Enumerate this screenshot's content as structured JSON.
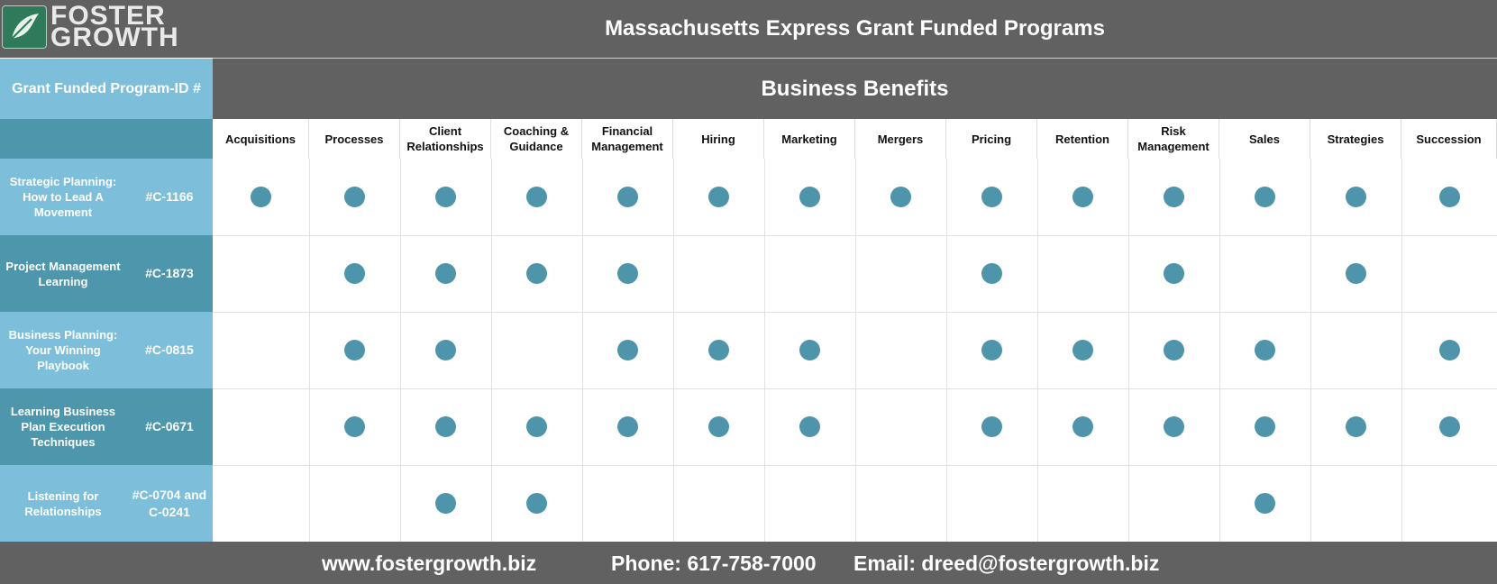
{
  "brand": {
    "logo_line1": "FOSTER",
    "logo_line2": "GROWTH",
    "logo_icon": "leaf-logo-icon"
  },
  "title": "Massachusetts Express Grant Funded Programs",
  "program_header": "Grant Funded Program-ID #",
  "benefits_header": "Business Benefits",
  "columns": [
    "Acquisitions",
    "Processes",
    "Client Relationships",
    "Coaching & Guidance",
    "Financial Management",
    "Hiring",
    "Marketing",
    "Mergers",
    "Pricing",
    "Retention",
    "Risk Management",
    "Sales",
    "Strategies",
    "Succession"
  ],
  "rows": [
    {
      "name": "Strategic Planning: How to Lead A Movement",
      "id": "#C-1166",
      "marks": [
        1,
        1,
        1,
        1,
        1,
        1,
        1,
        1,
        1,
        1,
        1,
        1,
        1,
        1
      ]
    },
    {
      "name": "Project Management Learning",
      "id": "#C-1873",
      "marks": [
        0,
        1,
        1,
        1,
        1,
        0,
        0,
        0,
        1,
        0,
        1,
        0,
        1,
        0
      ]
    },
    {
      "name": "Business Planning: Your Winning Playbook",
      "id": "#C-0815",
      "marks": [
        0,
        1,
        1,
        0,
        1,
        1,
        1,
        0,
        1,
        1,
        1,
        1,
        0,
        1
      ]
    },
    {
      "name": "Learning Business Plan Execution Techniques",
      "id": "#C-0671",
      "marks": [
        0,
        1,
        1,
        1,
        1,
        1,
        1,
        0,
        1,
        1,
        1,
        1,
        1,
        1
      ]
    },
    {
      "name": "Listening for Relationships",
      "id": "#C-0704 and C-0241",
      "marks": [
        0,
        0,
        1,
        1,
        0,
        0,
        0,
        0,
        0,
        0,
        0,
        1,
        0,
        0
      ]
    }
  ],
  "footer": {
    "website": "www.fostergrowth.biz",
    "phone": "Phone: 617-758-7000",
    "email": "Email: dreed@fostergrowth.biz"
  },
  "colors": {
    "dot": "#4e94ab",
    "light_cell": "#7dbfda",
    "dark_cell": "#4d96ac",
    "bar": "#616161"
  }
}
